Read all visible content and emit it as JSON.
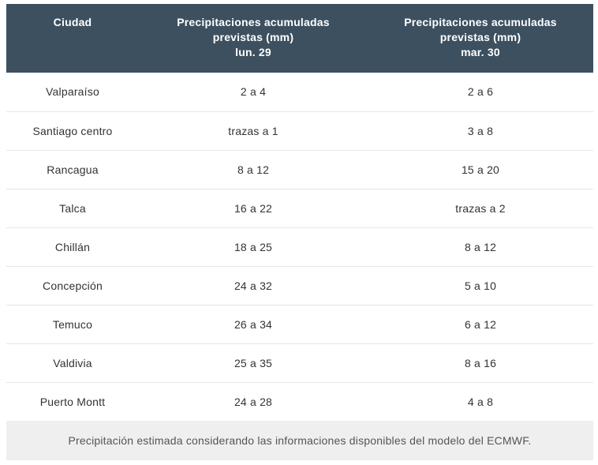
{
  "table": {
    "headers": {
      "city": "Ciudad",
      "day1": {
        "line1": "Precipitaciones acumuladas",
        "line2": "previstas (mm)",
        "line3": "lun. 29"
      },
      "day2": {
        "line1": "Precipitaciones acumuladas",
        "line2": "previstas (mm)",
        "line3": "mar. 30"
      }
    },
    "rows": [
      {
        "city": "Valparaíso",
        "day1": "2 a 4",
        "day2": "2 a 6"
      },
      {
        "city": "Santiago centro",
        "day1": "trazas a 1",
        "day2": "3 a 8"
      },
      {
        "city": "Rancagua",
        "day1": "8 a 12",
        "day2": "15 a 20"
      },
      {
        "city": "Talca",
        "day1": "16 a 22",
        "day2": "trazas a 2"
      },
      {
        "city": "Chillán",
        "day1": "18 a 25",
        "day2": "8 a 12"
      },
      {
        "city": "Concepción",
        "day1": "24 a 32",
        "day2": "5 a 10"
      },
      {
        "city": "Temuco",
        "day1": "26 a 34",
        "day2": "6 a 12"
      },
      {
        "city": "Valdivia",
        "day1": "25 a 35",
        "day2": "8 a 16"
      },
      {
        "city": "Puerto Montt",
        "day1": "24 a 28",
        "day2": "4 a 8"
      }
    ],
    "footnote": "Precipitación estimada considerando las informaciones disponibles del modelo del ECMWF."
  },
  "colors": {
    "header_bg": "#3d5060",
    "header_text": "#ffffff",
    "row_border": "#e6e6e6",
    "footnote_bg": "#efefef"
  }
}
